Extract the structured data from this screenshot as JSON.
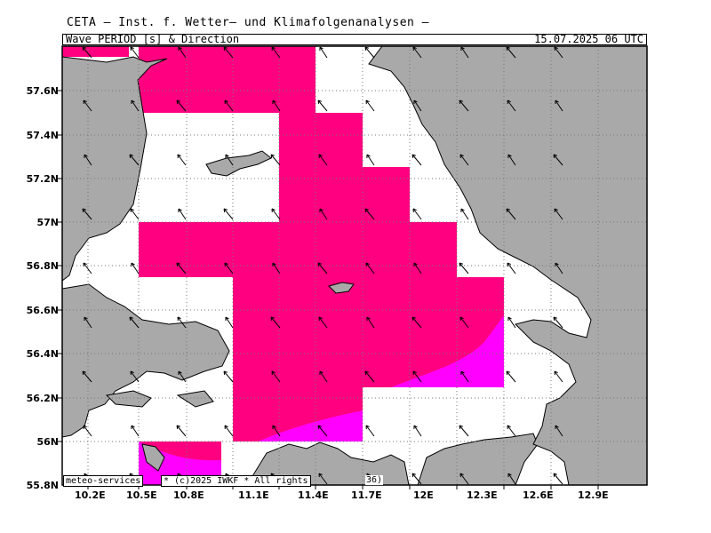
{
  "header": {
    "title": "CETA — Inst. f. Wetter— und Klimafolgenanalysen —",
    "parameter": "Wave PERIOD [s] & Direction",
    "datetime": "15.07.2025 06 UTC"
  },
  "footer": {
    "source": "meteo-services",
    "copyright": "* (c)2025 IWKF * All rights",
    "code": "36)"
  },
  "axes": {
    "lon_ticks": [
      "10.2E",
      "10.5E",
      "10.8E",
      "11.1E",
      "11.4E",
      "11.7E",
      "12E",
      "12.3E",
      "12.6E",
      "12.9E"
    ],
    "lat_ticks": [
      "57.6N",
      "57.4N",
      "57.2N",
      "57N",
      "56.8N",
      "56.6N",
      "56.4N",
      "56.2N",
      "56N",
      "55.8N"
    ]
  },
  "colors": {
    "land": "#a9a9a9",
    "magenta_dark": "#ff0080",
    "magenta_light": "#ff00ff",
    "water": "#ffffff"
  }
}
